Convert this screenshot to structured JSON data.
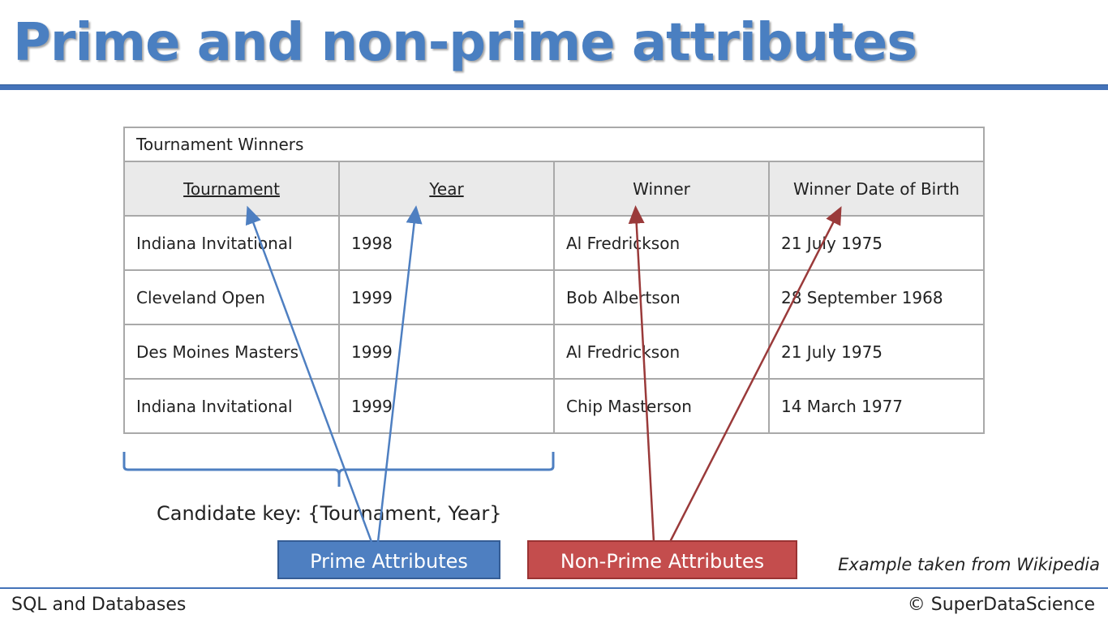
{
  "slide": {
    "title": "Prime and non-prime attributes"
  },
  "table": {
    "caption": "Tournament Winners",
    "headers": [
      "Tournament",
      "Year",
      "Winner",
      "Winner Date of Birth"
    ],
    "rows": [
      [
        "Indiana Invitational",
        "1998",
        "Al Fredrickson",
        "21 July 1975"
      ],
      [
        "Cleveland Open",
        "1999",
        "Bob Albertson",
        "28 September 1968"
      ],
      [
        "Des Moines Masters",
        "1999",
        "Al Fredrickson",
        "21 July 1975"
      ],
      [
        "Indiana Invitational",
        "1999",
        "Chip Masterson",
        "14 March 1977"
      ]
    ]
  },
  "candidate_key": "Candidate key: {Tournament, Year}",
  "labels": {
    "prime": "Prime Attributes",
    "non_prime": "Non-Prime Attributes"
  },
  "source_note": "Example taken from Wikipedia",
  "footer": {
    "left": "SQL and Databases",
    "right": "© SuperDataScience"
  },
  "colors": {
    "title_blue": "#4a7fc1",
    "rule_blue": "#4473b9",
    "prime_blue": "#4e7fc1",
    "non_prime_red": "#c44d4d",
    "arrow_red": "#9a3a3a"
  }
}
